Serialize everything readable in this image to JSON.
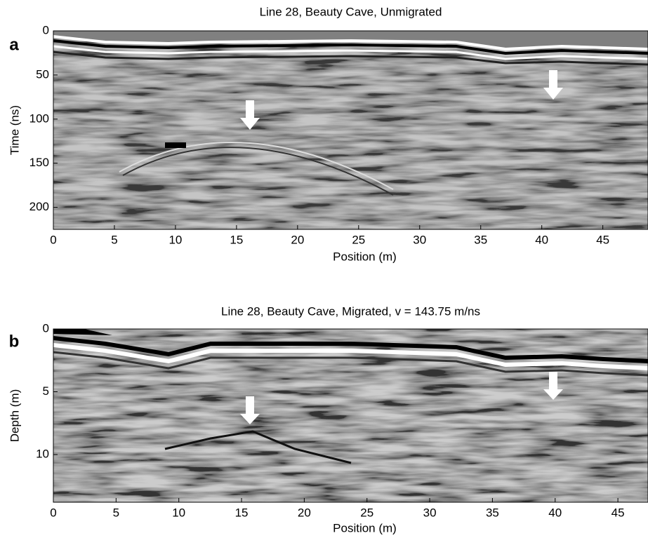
{
  "chart_data": [
    {
      "type": "image",
      "panel_label": "a",
      "title": "Line 28, Beauty Cave, Unmigrated",
      "xlabel": "Position (m)",
      "ylabel": "Time (ns)",
      "xlim": [
        0,
        48.7
      ],
      "xticks": [
        0,
        5,
        10,
        15,
        20,
        25,
        30,
        35,
        40,
        45
      ],
      "ylim": [
        0,
        225
      ],
      "yticks": [
        0,
        50,
        100,
        150,
        200
      ],
      "y_inverted": true
    },
    {
      "type": "image",
      "panel_label": "b",
      "title": "Line 28, Beauty Cave, Migrated, v = 143.75 m/ns",
      "xlabel": "Position (m)",
      "ylabel": "Depth (m)",
      "xlim": [
        0,
        47.4
      ],
      "xticks": [
        0,
        5,
        10,
        15,
        20,
        25,
        30,
        35,
        40,
        45
      ],
      "ylim": [
        0,
        13.8
      ],
      "yticks": [
        0,
        5,
        10
      ],
      "y_inverted": true
    }
  ]
}
